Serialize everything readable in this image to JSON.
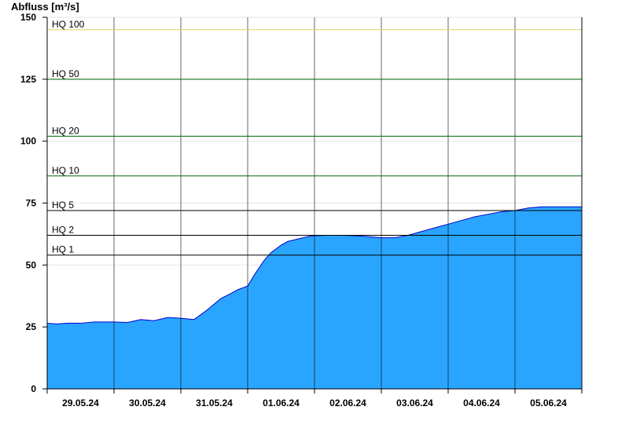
{
  "chart_data": {
    "type": "area",
    "title": "",
    "ylabel": "Abfluss [m³/s]",
    "xlabel": "",
    "ylim": [
      0,
      150
    ],
    "yticks": [
      0,
      25,
      50,
      75,
      100,
      125,
      150
    ],
    "x_range": [
      0,
      8
    ],
    "day_labels": [
      "29.05.24",
      "30.05.24",
      "31.05.24",
      "01.06.24",
      "02.06.24",
      "03.06.24",
      "04.06.24",
      "05.06.24"
    ],
    "grid": "horizontal lines at ticks; vertical lines at day boundaries",
    "fill_color": "#2aa5ff",
    "line_color": "#0000cc",
    "series": [
      {
        "x": [
          0.0,
          0.15,
          0.3,
          0.5,
          0.7,
          0.85,
          1.0,
          1.2,
          1.4,
          1.6,
          1.8,
          2.0,
          2.2,
          2.4,
          2.6,
          2.75,
          2.85,
          3.0,
          3.1,
          3.25,
          3.35,
          3.5,
          3.6,
          3.75,
          3.9,
          4.0,
          4.2,
          4.4,
          4.6,
          4.8,
          5.0,
          5.2,
          5.4,
          5.6,
          5.8,
          6.0,
          6.2,
          6.4,
          6.6,
          6.8,
          7.0,
          7.2,
          7.4,
          7.6,
          7.8,
          8.0
        ],
        "values": [
          26.5,
          26.2,
          26.5,
          26.5,
          27.0,
          27.0,
          27.0,
          26.8,
          28.0,
          27.5,
          28.8,
          28.5,
          28.0,
          32.0,
          36.5,
          38.5,
          40.0,
          41.5,
          46.0,
          52.0,
          55.0,
          58.0,
          59.5,
          60.5,
          61.5,
          61.8,
          62.0,
          62.0,
          61.8,
          61.5,
          61.0,
          61.0,
          62.0,
          63.5,
          65.0,
          66.5,
          68.0,
          69.5,
          70.5,
          71.5,
          72.0,
          73.0,
          73.5,
          73.5,
          73.5,
          73.5
        ]
      }
    ],
    "threshold_lines": [
      {
        "label": "HQ 1",
        "value": 54,
        "color": "#000000"
      },
      {
        "label": "HQ 2",
        "value": 62,
        "color": "#000000"
      },
      {
        "label": "HQ 5",
        "value": 72,
        "color": "#000000"
      },
      {
        "label": "HQ 10",
        "value": 86,
        "color": "#006400"
      },
      {
        "label": "HQ 20",
        "value": 102,
        "color": "#006400"
      },
      {
        "label": "HQ 50",
        "value": 125,
        "color": "#006400"
      },
      {
        "label": "HQ 100",
        "value": 145,
        "color": "#e8d060"
      }
    ]
  }
}
